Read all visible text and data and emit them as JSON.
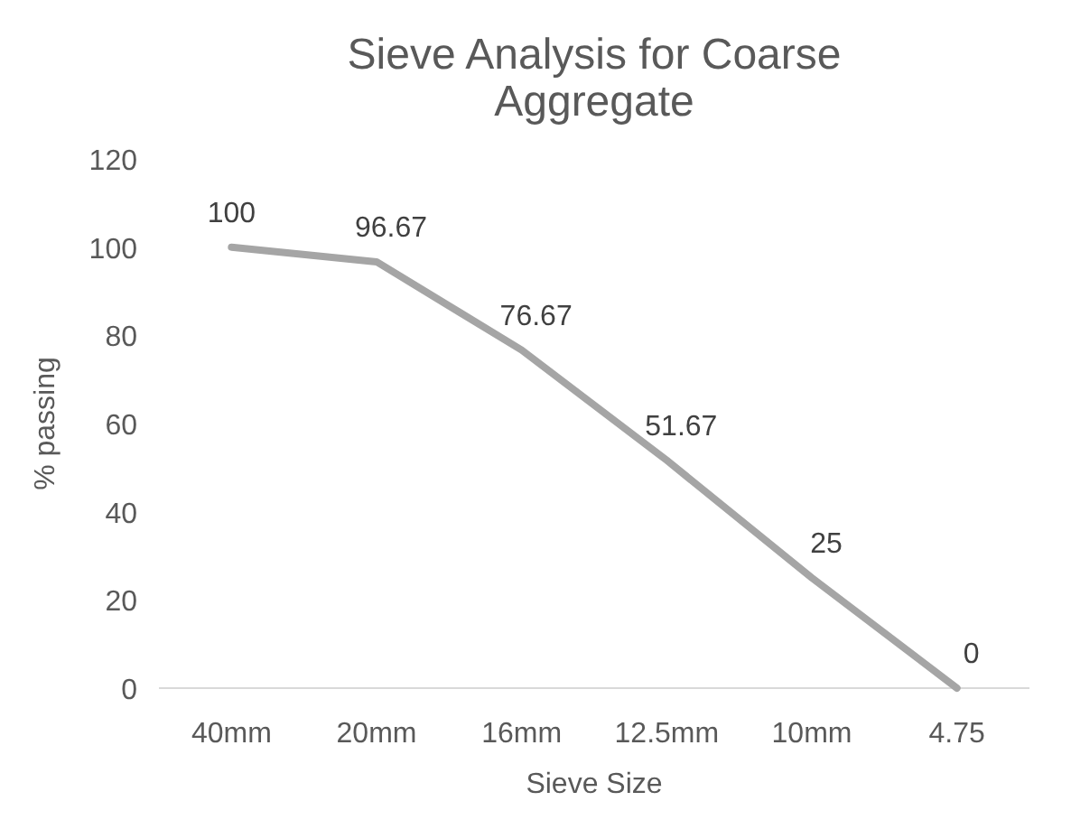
{
  "chart_data": {
    "type": "line",
    "title": "Sieve Analysis for Coarse Aggregate",
    "xlabel": "Sieve Size",
    "ylabel": "% passing",
    "categories": [
      "40mm",
      "20mm",
      "16mm",
      "12.5mm",
      "10mm",
      "4.75"
    ],
    "series": [
      {
        "color": "#a5a5a5",
        "values": [
          100,
          96.67,
          76.67,
          51.67,
          25,
          0
        ]
      }
    ],
    "ylim": [
      0,
      120
    ],
    "yticks": [
      0,
      20,
      40,
      60,
      80,
      100,
      120
    ],
    "data_labels": true,
    "grid": false,
    "marker": "none",
    "line_style": "solid"
  }
}
